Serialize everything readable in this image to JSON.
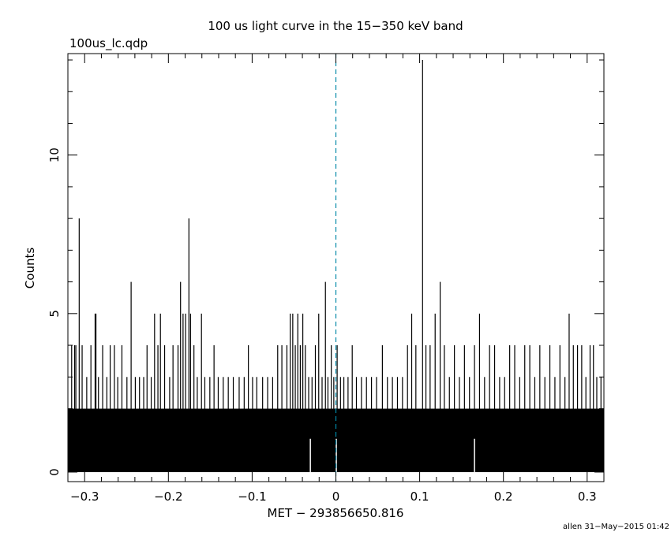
{
  "chart_data": {
    "type": "bar",
    "title": "100 us light curve in the 15−350 keV band",
    "subtitle": "100us_lc.qdp",
    "xlabel": "MET − 293856650.816",
    "ylabel": "Counts",
    "footer": "allen 31−May−2015 01:42",
    "xlim": [
      -0.32,
      0.32
    ],
    "ylim": [
      -0.3,
      13.2
    ],
    "x_ticks": [
      -0.3,
      -0.2,
      -0.1,
      0,
      0.1,
      0.2,
      0.3
    ],
    "x_tick_labels": [
      "−0.3",
      "−0.2",
      "−0.1",
      "0",
      "0.1",
      "0.2",
      "0.3"
    ],
    "y_ticks": [
      0,
      5,
      10
    ],
    "y_tick_labels": [
      "0",
      "5",
      "10"
    ],
    "bin_width": 0.0001,
    "reference_line_x": 0,
    "reference_line_color": "#0089a8",
    "baseline_count": 2,
    "secondary_baseline_count": 1,
    "peaks": [
      {
        "x": -0.3155,
        "y": 4
      },
      {
        "x": -0.312,
        "y": 4
      },
      {
        "x": -0.3105,
        "y": 4
      },
      {
        "x": -0.3065,
        "y": 8
      },
      {
        "x": -0.303,
        "y": 4
      },
      {
        "x": -0.2975,
        "y": 3
      },
      {
        "x": -0.2925,
        "y": 4
      },
      {
        "x": -0.2875,
        "y": 5
      },
      {
        "x": -0.2865,
        "y": 5
      },
      {
        "x": -0.2835,
        "y": 3
      },
      {
        "x": -0.2785,
        "y": 4
      },
      {
        "x": -0.2735,
        "y": 3
      },
      {
        "x": -0.2695,
        "y": 4
      },
      {
        "x": -0.2645,
        "y": 4
      },
      {
        "x": -0.2605,
        "y": 3
      },
      {
        "x": -0.2555,
        "y": 4
      },
      {
        "x": -0.2495,
        "y": 3
      },
      {
        "x": -0.2445,
        "y": 6
      },
      {
        "x": -0.2395,
        "y": 3
      },
      {
        "x": -0.2345,
        "y": 3
      },
      {
        "x": -0.2295,
        "y": 3
      },
      {
        "x": -0.2255,
        "y": 4
      },
      {
        "x": -0.2205,
        "y": 3
      },
      {
        "x": -0.2165,
        "y": 5
      },
      {
        "x": -0.2125,
        "y": 4
      },
      {
        "x": -0.2095,
        "y": 5
      },
      {
        "x": -0.2045,
        "y": 4
      },
      {
        "x": -0.1985,
        "y": 3
      },
      {
        "x": -0.1945,
        "y": 4
      },
      {
        "x": -0.1885,
        "y": 4
      },
      {
        "x": -0.1855,
        "y": 6
      },
      {
        "x": -0.1825,
        "y": 5
      },
      {
        "x": -0.1795,
        "y": 5
      },
      {
        "x": -0.1755,
        "y": 8
      },
      {
        "x": -0.1735,
        "y": 5
      },
      {
        "x": -0.1695,
        "y": 4
      },
      {
        "x": -0.1655,
        "y": 3
      },
      {
        "x": -0.1605,
        "y": 5
      },
      {
        "x": -0.1565,
        "y": 3
      },
      {
        "x": -0.1505,
        "y": 3
      },
      {
        "x": -0.1455,
        "y": 4
      },
      {
        "x": -0.1405,
        "y": 3
      },
      {
        "x": -0.1345,
        "y": 3
      },
      {
        "x": -0.1285,
        "y": 3
      },
      {
        "x": -0.1225,
        "y": 3
      },
      {
        "x": -0.1155,
        "y": 3
      },
      {
        "x": -0.1095,
        "y": 3
      },
      {
        "x": -0.1045,
        "y": 4
      },
      {
        "x": -0.0995,
        "y": 3
      },
      {
        "x": -0.0945,
        "y": 3
      },
      {
        "x": -0.0875,
        "y": 3
      },
      {
        "x": -0.0815,
        "y": 3
      },
      {
        "x": -0.0755,
        "y": 3
      },
      {
        "x": -0.0695,
        "y": 4
      },
      {
        "x": -0.0645,
        "y": 4
      },
      {
        "x": -0.0585,
        "y": 4
      },
      {
        "x": -0.0545,
        "y": 5
      },
      {
        "x": -0.0515,
        "y": 5
      },
      {
        "x": -0.0485,
        "y": 4
      },
      {
        "x": -0.0455,
        "y": 5
      },
      {
        "x": -0.0425,
        "y": 4
      },
      {
        "x": -0.0395,
        "y": 5
      },
      {
        "x": -0.0365,
        "y": 4
      },
      {
        "x": -0.0325,
        "y": 3
      },
      {
        "x": -0.0285,
        "y": 3
      },
      {
        "x": -0.0245,
        "y": 4
      },
      {
        "x": -0.0205,
        "y": 5
      },
      {
        "x": -0.0165,
        "y": 3
      },
      {
        "x": -0.0125,
        "y": 6
      },
      {
        "x": -0.0095,
        "y": 3
      },
      {
        "x": -0.0055,
        "y": 4
      },
      {
        "x": -0.0025,
        "y": 3
      },
      {
        "x": 0.0015,
        "y": 4
      },
      {
        "x": 0.0055,
        "y": 3
      },
      {
        "x": 0.0095,
        "y": 3
      },
      {
        "x": 0.0145,
        "y": 3
      },
      {
        "x": 0.0195,
        "y": 4
      },
      {
        "x": 0.0245,
        "y": 3
      },
      {
        "x": 0.0305,
        "y": 3
      },
      {
        "x": 0.0365,
        "y": 3
      },
      {
        "x": 0.0425,
        "y": 3
      },
      {
        "x": 0.0485,
        "y": 3
      },
      {
        "x": 0.0555,
        "y": 4
      },
      {
        "x": 0.0615,
        "y": 3
      },
      {
        "x": 0.0675,
        "y": 3
      },
      {
        "x": 0.0735,
        "y": 3
      },
      {
        "x": 0.0795,
        "y": 3
      },
      {
        "x": 0.0855,
        "y": 4
      },
      {
        "x": 0.0905,
        "y": 5
      },
      {
        "x": 0.0955,
        "y": 4
      },
      {
        "x": 0.1035,
        "y": 13
      },
      {
        "x": 0.1075,
        "y": 4
      },
      {
        "x": 0.1125,
        "y": 4
      },
      {
        "x": 0.1185,
        "y": 5
      },
      {
        "x": 0.1245,
        "y": 6
      },
      {
        "x": 0.1295,
        "y": 4
      },
      {
        "x": 0.1355,
        "y": 3
      },
      {
        "x": 0.1415,
        "y": 4
      },
      {
        "x": 0.1475,
        "y": 3
      },
      {
        "x": 0.1535,
        "y": 4
      },
      {
        "x": 0.1595,
        "y": 3
      },
      {
        "x": 0.1655,
        "y": 4
      },
      {
        "x": 0.1715,
        "y": 5
      },
      {
        "x": 0.1775,
        "y": 3
      },
      {
        "x": 0.1835,
        "y": 4
      },
      {
        "x": 0.1895,
        "y": 4
      },
      {
        "x": 0.1955,
        "y": 3
      },
      {
        "x": 0.2015,
        "y": 3
      },
      {
        "x": 0.2075,
        "y": 4
      },
      {
        "x": 0.2135,
        "y": 4
      },
      {
        "x": 0.2195,
        "y": 3
      },
      {
        "x": 0.2255,
        "y": 4
      },
      {
        "x": 0.2315,
        "y": 4
      },
      {
        "x": 0.2375,
        "y": 3
      },
      {
        "x": 0.2435,
        "y": 4
      },
      {
        "x": 0.2495,
        "y": 3
      },
      {
        "x": 0.2555,
        "y": 4
      },
      {
        "x": 0.2615,
        "y": 3
      },
      {
        "x": 0.2675,
        "y": 4
      },
      {
        "x": 0.2735,
        "y": 3
      },
      {
        "x": 0.2785,
        "y": 5
      },
      {
        "x": 0.2835,
        "y": 4
      },
      {
        "x": 0.2885,
        "y": 4
      },
      {
        "x": 0.2935,
        "y": 4
      },
      {
        "x": 0.2985,
        "y": 3
      },
      {
        "x": 0.3035,
        "y": 4
      },
      {
        "x": 0.3075,
        "y": 4
      },
      {
        "x": 0.3115,
        "y": 3
      },
      {
        "x": 0.3165,
        "y": 3
      }
    ],
    "gaps": [
      -0.0305,
      0.0005,
      0.1655
    ]
  }
}
